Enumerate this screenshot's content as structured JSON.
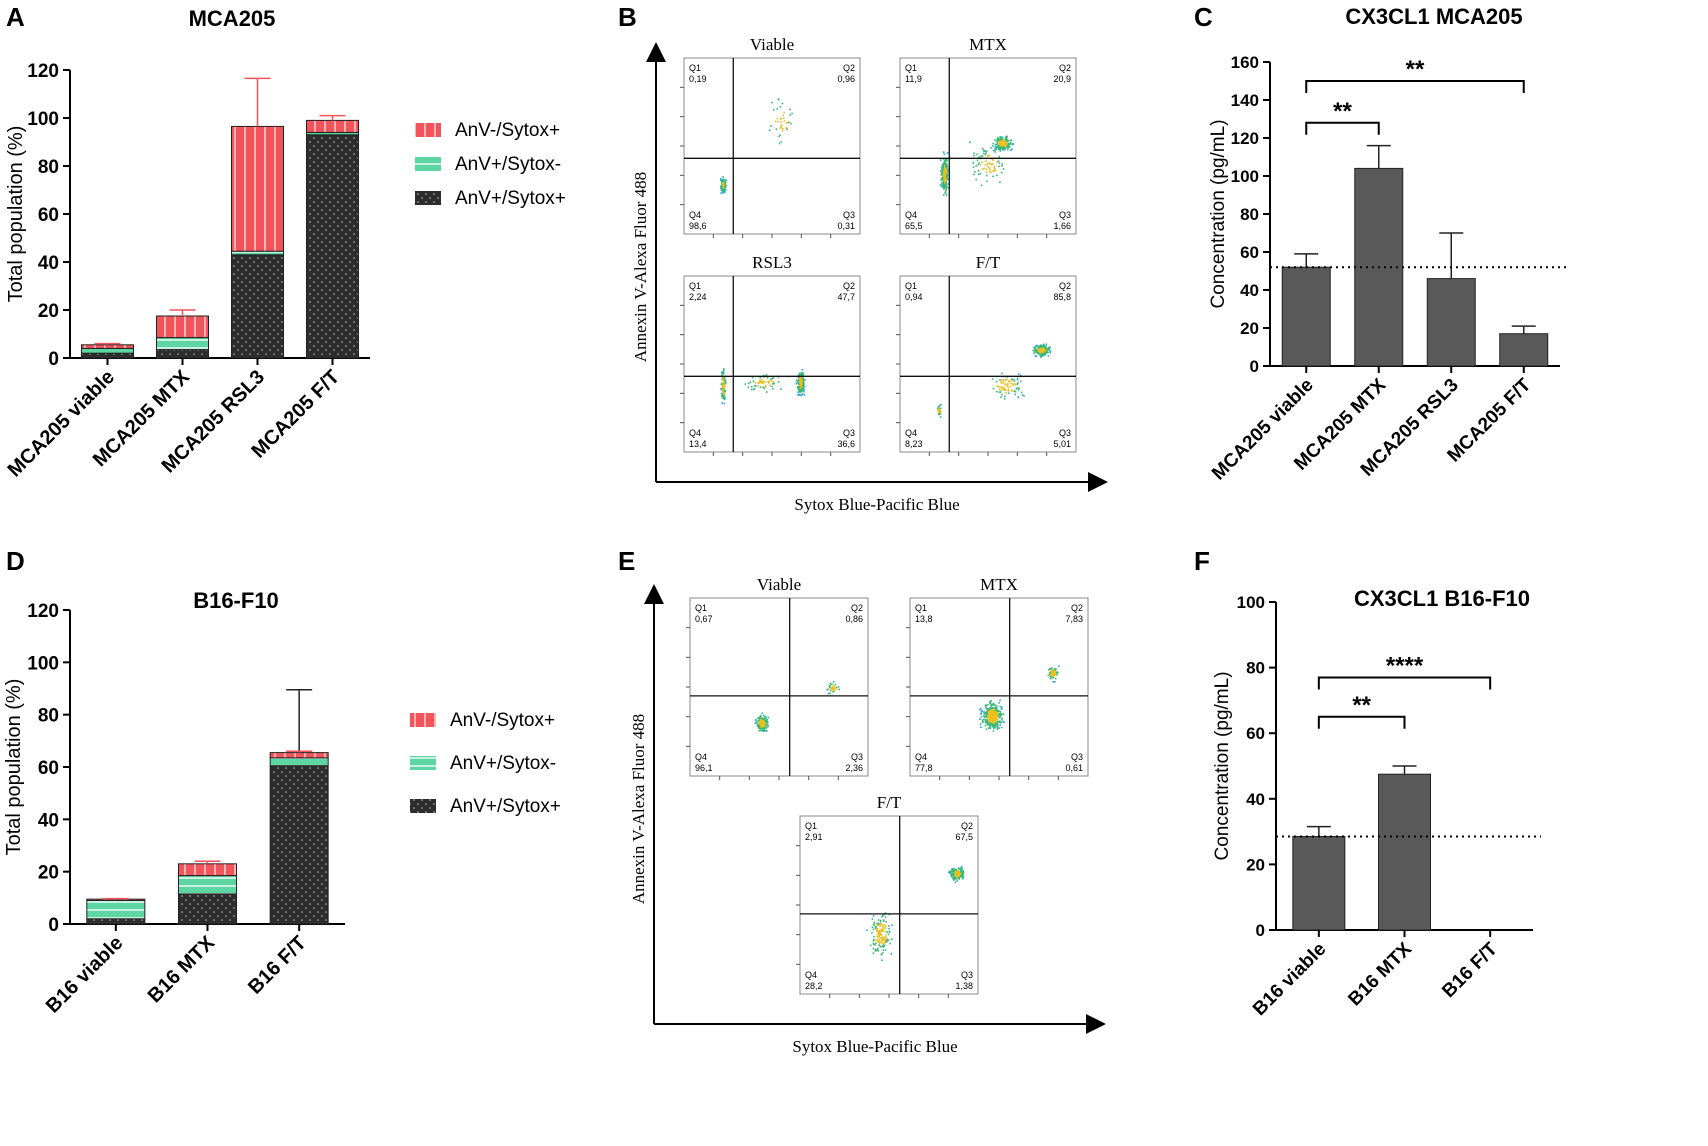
{
  "panels": {
    "A": {
      "letter": "A",
      "chart_data": {
        "type": "bar",
        "stacked": true,
        "title": "MCA205",
        "ylabel": "Total population (%)",
        "xlabel": "",
        "ylim": [
          0,
          120
        ],
        "yticks": [
          0,
          20,
          40,
          60,
          80,
          100,
          120
        ],
        "categories": [
          "MCA205 viable",
          "MCA205 MTX",
          "MCA205 RSL3",
          "MCA205 F/T"
        ],
        "series": [
          {
            "name": "AnV+/Sytox+",
            "values": [
              2,
              3.5,
              43,
              93
            ],
            "errors": [
              1,
              1,
              18,
              1.5
            ],
            "color": "#2d2d2d"
          },
          {
            "name": "AnV+/Sytox-",
            "values": [
              2,
              5,
              1.5,
              1
            ],
            "errors": [
              0.5,
              2.5,
              1.5,
              0.5
            ],
            "color": "#5dd6a3"
          },
          {
            "name": "AnV-/Sytox+",
            "values": [
              1.5,
              9,
              52,
              5
            ],
            "errors": [
              0.5,
              2.5,
              20,
              2
            ],
            "color": "#f2545b"
          }
        ],
        "legend": [
          "AnV-/Sytox+",
          "AnV+/Sytox-",
          "AnV+/Sytox+"
        ]
      }
    },
    "B": {
      "letter": "B",
      "ylabel": "Annexin V-Alexa Fluor 488",
      "xlabel": "Sytox Blue-Pacific Blue",
      "plots": [
        {
          "title": "Viable",
          "q1": "Q1",
          "q1v": "0,19",
          "q2": "Q2",
          "q2v": "0,96",
          "q3": "Q3",
          "q3v": "0,31",
          "q4": "Q4",
          "q4v": "98,6"
        },
        {
          "title": "MTX",
          "q1": "Q1",
          "q1v": "11,9",
          "q2": "Q2",
          "q2v": "20,9",
          "q3": "Q3",
          "q3v": "1,66",
          "q4": "Q4",
          "q4v": "65,5"
        },
        {
          "title": "RSL3",
          "q1": "Q1",
          "q1v": "2,24",
          "q2": "Q2",
          "q2v": "47,7",
          "q3": "Q3",
          "q3v": "36,6",
          "q4": "Q4",
          "q4v": "13,4"
        },
        {
          "title": "F/T",
          "q1": "Q1",
          "q1v": "0,94",
          "q2": "Q2",
          "q2v": "85,8",
          "q3": "Q3",
          "q3v": "5,01",
          "q4": "Q4",
          "q4v": "8,23"
        }
      ]
    },
    "C": {
      "letter": "C",
      "chart_data": {
        "type": "bar",
        "title": "CX3CL1 MCA205",
        "ylabel": "Concentration (pg/mL)",
        "xlabel": "",
        "ylim": [
          0,
          160
        ],
        "yticks": [
          0,
          20,
          40,
          60,
          80,
          100,
          120,
          140,
          160
        ],
        "categories": [
          "MCA205 viable",
          "MCA205 MTX",
          "MCA205 RSL3",
          "MCA205 F/T"
        ],
        "values": [
          52,
          104,
          46,
          17
        ],
        "errors": [
          7,
          12,
          24,
          4
        ],
        "baseline": 52,
        "significance": [
          {
            "from": 0,
            "to": 1,
            "label": "**",
            "y": 128
          },
          {
            "from": 0,
            "to": 3,
            "label": "**",
            "y": 150
          }
        ],
        "color": "#595959"
      }
    },
    "D": {
      "letter": "D",
      "chart_data": {
        "type": "bar",
        "stacked": true,
        "title": "B16-F10",
        "ylabel": "Total population (%)",
        "xlabel": "",
        "ylim": [
          0,
          120
        ],
        "yticks": [
          0,
          20,
          40,
          60,
          80,
          100,
          120
        ],
        "categories": [
          "B16 viable",
          "B16 MTX",
          "B16 F/T"
        ],
        "series": [
          {
            "name": "AnV+/Sytox+",
            "values": [
              2,
              11.5,
              60.5
            ],
            "errors": [
              0.5,
              1,
              29
            ],
            "color": "#2d2d2d"
          },
          {
            "name": "AnV+/Sytox-",
            "values": [
              7,
              7,
              3
            ],
            "errors": [
              0.3,
              0.5,
              0.5
            ],
            "color": "#5dd6a3"
          },
          {
            "name": "AnV-/Sytox+",
            "values": [
              0.5,
              4.5,
              2
            ],
            "errors": [
              0.2,
              1,
              0.5
            ],
            "color": "#f2545b"
          }
        ],
        "legend": [
          "AnV-/Sytox+",
          "AnV+/Sytox-",
          "AnV+/Sytox+"
        ]
      }
    },
    "E": {
      "letter": "E",
      "ylabel": "Annexin V-Alexa Fluor 488",
      "xlabel": "Sytox Blue-Pacific Blue",
      "plots": [
        {
          "title": "Viable",
          "q1": "Q1",
          "q1v": "0,67",
          "q2": "Q2",
          "q2v": "0,86",
          "q3": "Q3",
          "q3v": "2,36",
          "q4": "Q4",
          "q4v": "96,1"
        },
        {
          "title": "MTX",
          "q1": "Q1",
          "q1v": "13,8",
          "q2": "Q2",
          "q2v": "7,83",
          "q3": "Q3",
          "q3v": "0,61",
          "q4": "Q4",
          "q4v": "77,8"
        },
        {
          "title": "F/T",
          "q1": "Q1",
          "q1v": "2,91",
          "q2": "Q2",
          "q2v": "67,5",
          "q3": "Q3",
          "q3v": "1,38",
          "q4": "Q4",
          "q4v": "28,2"
        }
      ]
    },
    "F": {
      "letter": "F",
      "chart_data": {
        "type": "bar",
        "title": "CX3CL1 B16-F10",
        "ylabel": "Concentration (pg/mL)",
        "xlabel": "",
        "ylim": [
          0,
          100
        ],
        "yticks": [
          0,
          20,
          40,
          60,
          80,
          100
        ],
        "categories": [
          "B16 viable",
          "B16 MTX",
          "B16 F/T"
        ],
        "values": [
          28.5,
          47.5,
          0
        ],
        "errors": [
          3,
          2.5,
          0
        ],
        "baseline": 28.5,
        "significance": [
          {
            "from": 0,
            "to": 1,
            "label": "**",
            "y": 65
          },
          {
            "from": 0,
            "to": 2,
            "label": "****",
            "y": 77
          }
        ],
        "color": "#595959"
      }
    }
  }
}
